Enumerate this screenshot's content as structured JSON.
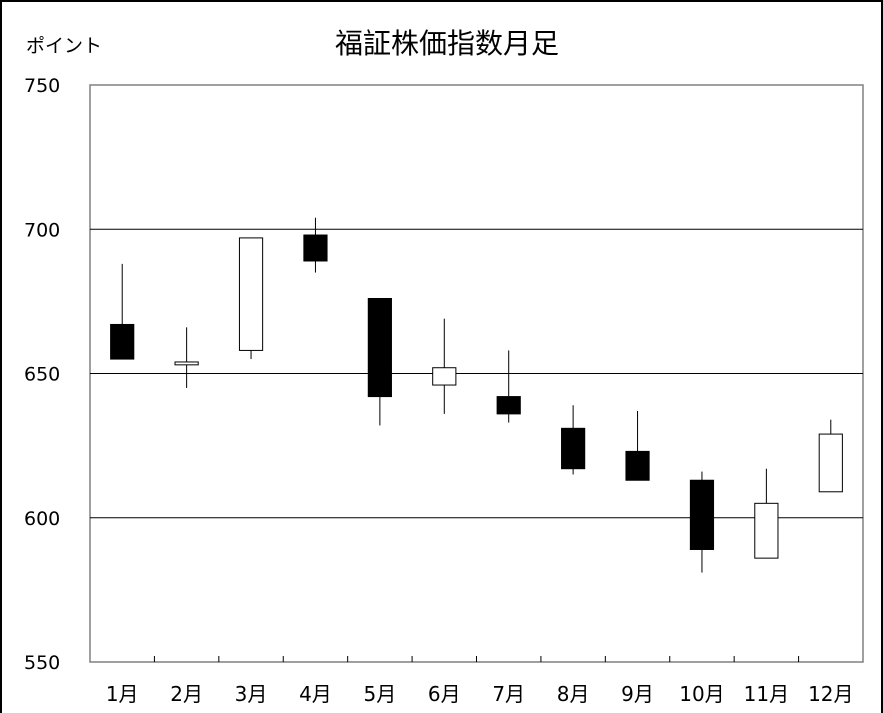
{
  "chart_data": {
    "type": "candlestick",
    "title": "福証株価指数月足",
    "ylabel": "ポイント",
    "xlabel": "",
    "ylim": [
      550,
      750
    ],
    "yticks": [
      550,
      600,
      650,
      700,
      750
    ],
    "grid": true,
    "categories": [
      "1月",
      "2月",
      "3月",
      "4月",
      "5月",
      "6月",
      "7月",
      "8月",
      "9月",
      "10月",
      "11月",
      "12月"
    ],
    "candles": [
      {
        "open": 667,
        "high": 688,
        "low": 655,
        "close": 655
      },
      {
        "open": 653,
        "high": 666,
        "low": 645,
        "close": 654
      },
      {
        "open": 658,
        "high": 697,
        "low": 655,
        "close": 697
      },
      {
        "open": 698,
        "high": 704,
        "low": 685,
        "close": 689
      },
      {
        "open": 676,
        "high": 676,
        "low": 632,
        "close": 642
      },
      {
        "open": 646,
        "high": 669,
        "low": 636,
        "close": 652
      },
      {
        "open": 642,
        "high": 658,
        "low": 633,
        "close": 636
      },
      {
        "open": 631,
        "high": 639,
        "low": 615,
        "close": 617
      },
      {
        "open": 623,
        "high": 637,
        "low": 613,
        "close": 613
      },
      {
        "open": 613,
        "high": 616,
        "low": 581,
        "close": 589
      },
      {
        "open": 586,
        "high": 617,
        "low": 586,
        "close": 605
      },
      {
        "open": 609,
        "high": 634,
        "low": 609,
        "close": 629
      }
    ],
    "colors": {
      "down": "#000000",
      "up": "#ffffff",
      "grid": "#000000",
      "frame": "#808080"
    }
  }
}
